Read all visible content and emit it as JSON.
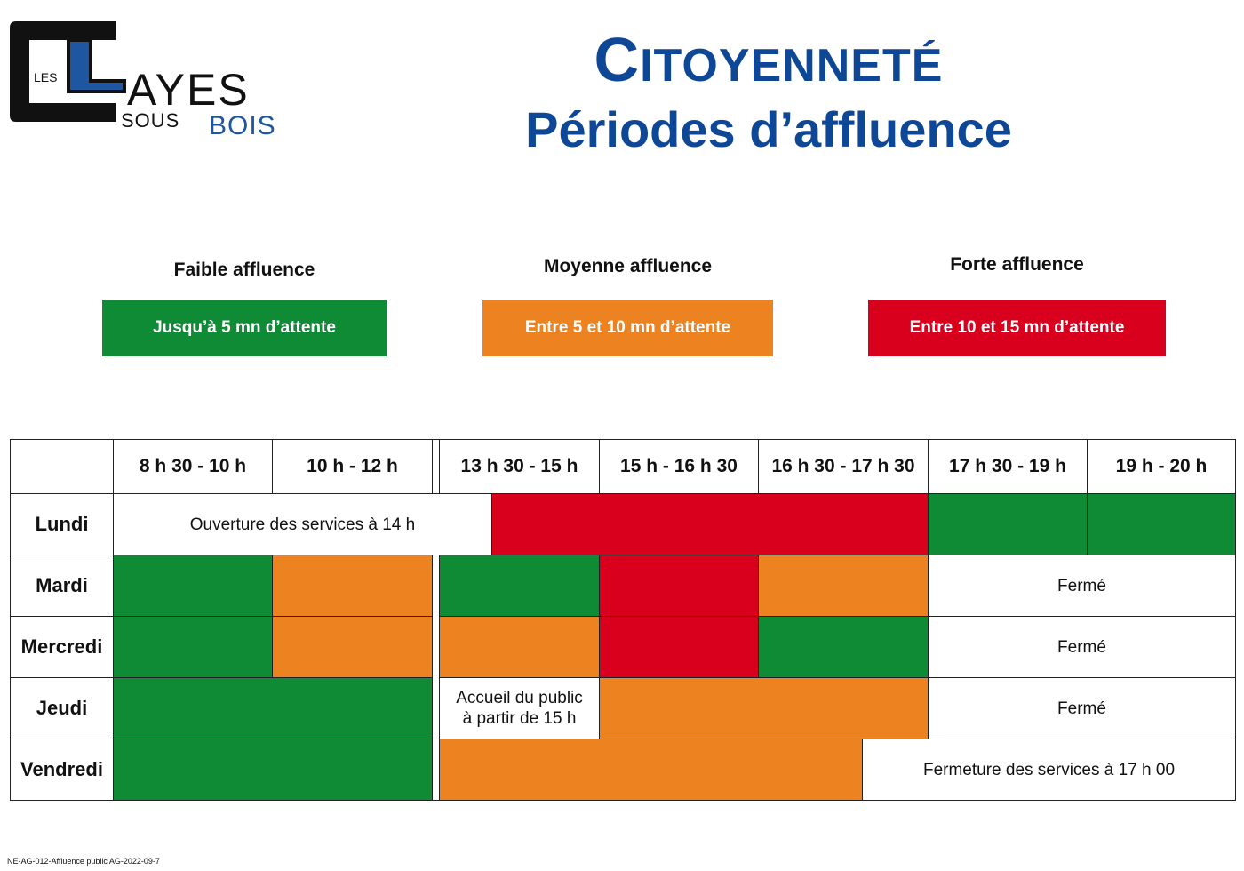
{
  "logo": {
    "les": "LES",
    "layes": "AYES",
    "sous": "SOUS",
    "bois": "BOIS",
    "colors": {
      "dark": "#111111",
      "blue": "#1e56a0"
    }
  },
  "title": {
    "line1_initial": "C",
    "line1_rest": "ITOYENNETÉ",
    "line2": "Périodes d’affluence"
  },
  "legend": [
    {
      "label": "Faible affluence",
      "box": "Jusqu’à 5 mn d’attente",
      "color": "#0f8a35"
    },
    {
      "label": "Moyenne affluence",
      "box": "Entre 5 et 10 mn d’attente",
      "color": "#ec8220"
    },
    {
      "label": "Forte affluence",
      "box": "Entre 10 et 15 mn d’attente",
      "color": "#d8001d"
    }
  ],
  "table": {
    "headers": [
      "8 h 30 - 10 h",
      "10 h - 12 h",
      "13 h 30 - 15 h",
      "15 h - 16 h 30",
      "16 h 30 - 17 h 30",
      "17 h 30 - 19 h",
      "19 h - 20 h"
    ],
    "days": [
      "Lundi",
      "Mardi",
      "Mercredi",
      "Jeudi",
      "Vendredi"
    ],
    "notes": {
      "lundi_open": "Ouverture des services à 14 h",
      "ferme": "Fermé",
      "jeudi_l1": "Accueil du public",
      "jeudi_l2": "à partir de 15 h",
      "vendredi_close": "Fermeture des services à 17 h 00"
    },
    "colors": {
      "faible": "#0f8a35",
      "moyenne": "#ec8220",
      "forte": "#d8001d"
    }
  },
  "footer": "NE-AG-012-Affluence public AG-2022-09-7"
}
